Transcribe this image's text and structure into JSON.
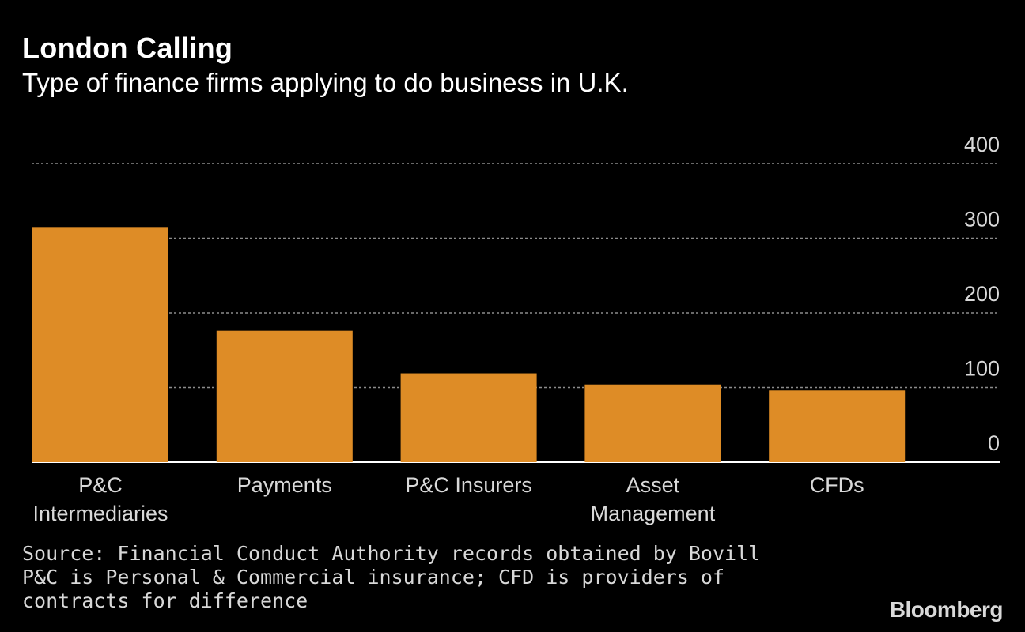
{
  "title": "London Calling",
  "subtitle": "Type of finance firms applying to do business in U.K.",
  "chart_data": {
    "type": "bar",
    "title": "London Calling",
    "subtitle": "Type of finance firms applying to do business in U.K.",
    "categories": [
      [
        "P&C",
        "Intermediaries"
      ],
      [
        "Payments"
      ],
      [
        "P&C Insurers"
      ],
      [
        "Asset",
        "Management"
      ],
      [
        "CFDs"
      ]
    ],
    "values": [
      315,
      176,
      119,
      104,
      96
    ],
    "ylim": [
      0,
      400
    ],
    "yticks": [
      0,
      100,
      200,
      300,
      400
    ],
    "ytick_labels": [
      "0",
      "100",
      "200",
      "300",
      "400"
    ],
    "grid": true,
    "yaxis_position": "right",
    "bar_color": "#DE8C26"
  },
  "notes": {
    "source": "Source: Financial Conduct Authority records obtained by Bovill",
    "footnote": "P&C is Personal & Commercial insurance; CFD is providers of contracts for difference"
  },
  "logo_text": "Bloomberg",
  "colors": {
    "background": "#000000",
    "bar": "#DE8C26",
    "grid": "#8c8c8c",
    "text": "#ffffff"
  }
}
